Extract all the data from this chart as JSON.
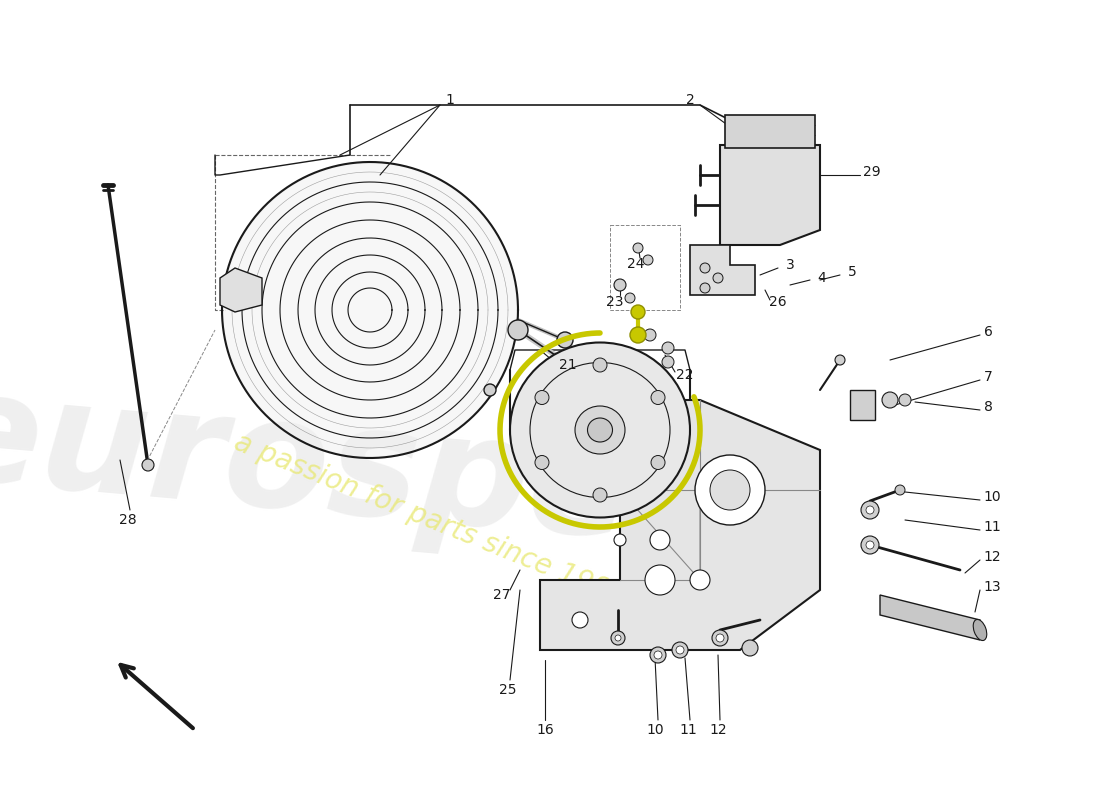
{
  "bg_color": "#ffffff",
  "line_color": "#1a1a1a",
  "fig_width": 11.0,
  "fig_height": 8.0,
  "dpi": 100,
  "watermark_gray": "#c8c8c8",
  "watermark_yellow": "#e8e870",
  "yellow_clamp": "#c8c800"
}
